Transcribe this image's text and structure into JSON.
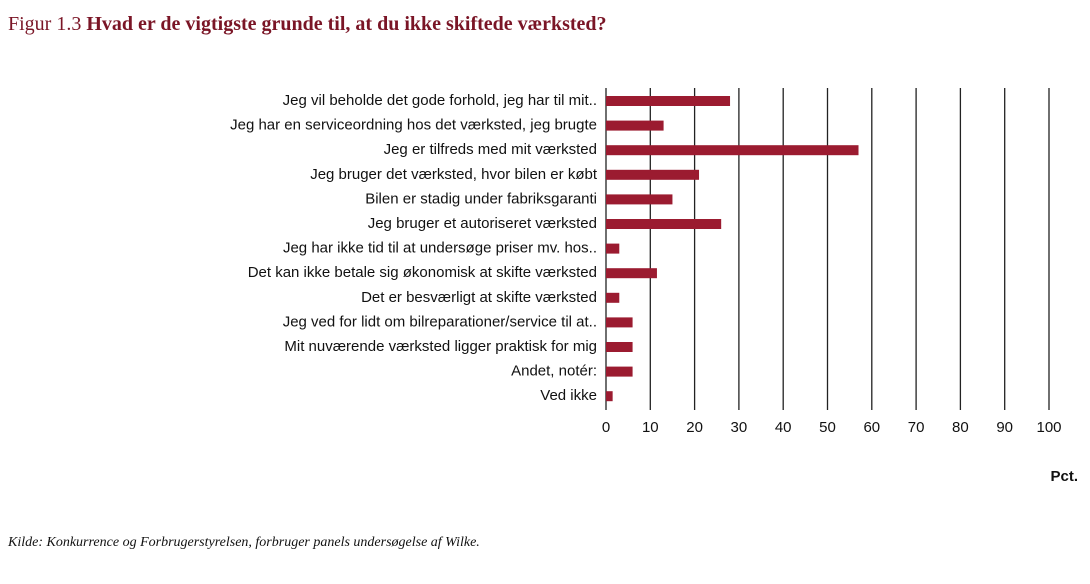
{
  "chart_data": {
    "type": "bar",
    "orientation": "horizontal",
    "figure_label": "Figur 1.3",
    "title": "Hvad er de vigtigste grunde til, at du ikke skiftede værksted?",
    "categories": [
      "Jeg vil beholde det gode forhold, jeg har til mit..",
      "Jeg har en serviceordning hos det værksted, jeg brugte",
      "Jeg er tilfreds med mit værksted",
      "Jeg bruger det værksted, hvor bilen er købt",
      "Bilen er stadig under fabriksgaranti",
      "Jeg bruger et autoriseret værksted",
      "Jeg har ikke tid til at undersøge priser mv. hos..",
      "Det kan ikke betale sig økonomisk at skifte værksted",
      "Det er besværligt at skifte værksted",
      "Jeg ved for lidt om bilreparationer/service til at..",
      "Mit nuværende værksted ligger praktisk for mig",
      "Andet, notér:",
      "Ved ikke"
    ],
    "values": [
      28,
      13,
      57,
      21,
      15,
      26,
      3,
      11.5,
      3,
      6,
      6,
      6,
      1.5
    ],
    "color": "#9b1b30",
    "xlim": [
      0,
      100
    ],
    "xticks": [
      0,
      10,
      20,
      30,
      40,
      50,
      60,
      70,
      80,
      90,
      100
    ],
    "xlabel": "Pct.",
    "grid": true,
    "source": "Kilde: Konkurrence og Forbrugerstyrelsen, forbruger panels undersøgelse af Wilke."
  }
}
